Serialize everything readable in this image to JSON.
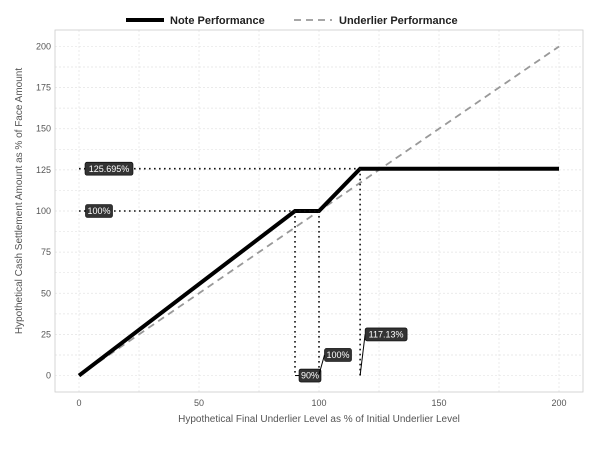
{
  "chart_data": {
    "type": "line",
    "xlabel": "Hypothetical Final Underlier Level as % of Initial Underlier Level",
    "ylabel": "Hypothetical Cash Settlement Amount as % of Face Amount",
    "xlim": [
      -10,
      210
    ],
    "ylim": [
      -10,
      210
    ],
    "x_ticks": [
      0,
      50,
      100,
      150,
      200
    ],
    "y_ticks": [
      0,
      25,
      50,
      75,
      100,
      125,
      150,
      175,
      200
    ],
    "grid": true,
    "legend_position": "top",
    "series": [
      {
        "name": "Note Performance",
        "style": "solid",
        "color": "#000000",
        "x": [
          0,
          90,
          100,
          117.13,
          200
        ],
        "y": [
          0,
          100,
          100,
          125.695,
          125.695
        ]
      },
      {
        "name": "Underlier Performance",
        "style": "dashed",
        "color": "#999999",
        "x": [
          0,
          200
        ],
        "y": [
          0,
          200
        ]
      }
    ],
    "annotations": {
      "horizontal": [
        {
          "label": "125.695%",
          "y": 125.695,
          "x_end": 117.13
        },
        {
          "label": "100%",
          "y": 100,
          "x_end": 100
        }
      ],
      "vertical": [
        {
          "label": "90%",
          "x": 90,
          "y_top": 100
        },
        {
          "label": "100%",
          "x": 100,
          "y_top": 100
        },
        {
          "label": "117.13%",
          "x": 117.13,
          "y_top": 125.695
        }
      ]
    }
  }
}
